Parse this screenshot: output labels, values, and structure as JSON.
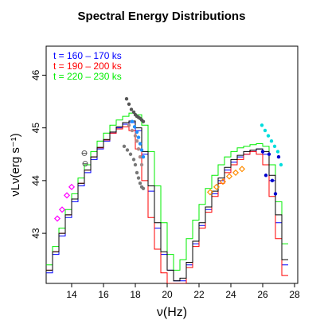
{
  "chart_data": {
    "type": "line",
    "title": "Spectral Energy Distributions",
    "xlabel": "ν(Hz)",
    "ylabel": "νLν(erg s⁻¹)",
    "xlim": [
      12.4,
      28.2
    ],
    "ylim": [
      42.05,
      46.55
    ],
    "x_ticks": [
      14,
      16,
      18,
      20,
      22,
      24,
      26,
      28
    ],
    "y_ticks": [
      43,
      44,
      45,
      46
    ],
    "grid": false,
    "legend_placement": "top-left",
    "legend": [
      {
        "label": "t = 160 – 170 ks",
        "color": "#0000ff"
      },
      {
        "label": "t = 190 – 200 ks",
        "color": "#ff0000"
      },
      {
        "label": "t = 220 – 230 ks",
        "color": "#00ee00"
      }
    ],
    "series": [
      {
        "color": "#0000ff",
        "style": "step",
        "x": [
          12.4,
          12.8,
          13.2,
          13.6,
          14.0,
          14.4,
          14.8,
          15.2,
          15.6,
          16.0,
          16.4,
          16.8,
          17.2,
          17.6,
          18.0,
          18.4,
          18.8,
          19.2,
          19.6,
          20.0,
          20.4,
          20.8,
          21.2,
          21.6,
          22.0,
          22.4,
          22.8,
          23.2,
          23.6,
          24.0,
          24.4,
          24.8,
          25.2,
          25.6,
          26.0,
          26.4,
          26.8,
          27.2
        ],
        "y": [
          42.25,
          42.6,
          42.95,
          43.3,
          43.6,
          43.9,
          44.15,
          44.4,
          44.6,
          44.75,
          44.9,
          45.0,
          45.07,
          45.1,
          44.95,
          44.5,
          43.8,
          43.1,
          42.6,
          42.3,
          42.1,
          42.1,
          42.4,
          42.8,
          43.15,
          43.45,
          43.75,
          44.0,
          44.2,
          44.35,
          44.45,
          44.5,
          44.55,
          44.6,
          44.5,
          44.0,
          43.2,
          42.4
        ]
      },
      {
        "color": "#ff0000",
        "style": "step",
        "x": [
          12.4,
          12.8,
          13.2,
          13.6,
          14.0,
          14.4,
          14.8,
          15.2,
          15.6,
          16.0,
          16.4,
          16.8,
          17.2,
          17.6,
          18.0,
          18.4,
          18.8,
          19.2,
          19.6,
          20.0,
          20.4,
          20.8,
          21.2,
          21.6,
          22.0,
          22.4,
          22.8,
          23.2,
          23.6,
          24.0,
          24.4,
          24.8,
          25.2,
          25.6,
          26.0,
          26.4,
          26.8,
          27.2
        ],
        "y": [
          42.3,
          42.65,
          43.0,
          43.35,
          43.65,
          43.95,
          44.2,
          44.45,
          44.62,
          44.77,
          44.9,
          44.98,
          45.02,
          44.95,
          44.6,
          44.0,
          43.3,
          42.7,
          42.25,
          42.05,
          42.05,
          42.05,
          42.35,
          42.75,
          43.1,
          43.4,
          43.7,
          43.95,
          44.15,
          44.3,
          44.4,
          44.5,
          44.55,
          44.5,
          44.3,
          43.7,
          42.9,
          42.2
        ]
      },
      {
        "color": "#00ee00",
        "style": "step",
        "x": [
          12.4,
          12.8,
          13.2,
          13.6,
          14.0,
          14.4,
          14.8,
          15.2,
          15.6,
          16.0,
          16.4,
          16.8,
          17.2,
          17.6,
          18.0,
          18.4,
          18.8,
          19.2,
          19.6,
          20.0,
          20.4,
          20.8,
          21.2,
          21.6,
          22.0,
          22.4,
          22.8,
          23.2,
          23.6,
          24.0,
          24.4,
          24.8,
          25.2,
          25.6,
          26.0,
          26.4,
          26.8,
          27.2
        ],
        "y": [
          42.4,
          42.75,
          43.1,
          43.45,
          43.75,
          44.05,
          44.3,
          44.55,
          44.75,
          44.9,
          45.05,
          45.15,
          45.22,
          45.28,
          45.25,
          45.05,
          44.55,
          43.9,
          43.2,
          42.6,
          42.3,
          42.5,
          42.9,
          43.25,
          43.55,
          43.85,
          44.1,
          44.3,
          44.45,
          44.55,
          44.62,
          44.65,
          44.68,
          44.7,
          44.65,
          44.3,
          43.6,
          42.8
        ]
      },
      {
        "color": "#000000",
        "style": "step",
        "x": [
          12.4,
          12.8,
          13.2,
          13.6,
          14.0,
          14.4,
          14.8,
          15.2,
          15.6,
          16.0,
          16.4,
          16.8,
          17.2,
          17.6,
          18.0,
          18.4,
          18.8,
          19.2,
          19.6,
          20.0,
          20.4,
          20.8,
          21.2,
          21.6,
          22.0,
          22.4,
          22.8,
          23.2,
          23.6,
          24.0,
          24.4,
          24.8,
          25.2,
          25.6,
          26.0,
          26.4,
          26.8,
          27.2
        ],
        "y": [
          42.3,
          42.65,
          43.0,
          43.35,
          43.65,
          43.95,
          44.2,
          44.45,
          44.63,
          44.78,
          44.92,
          45.02,
          45.1,
          45.13,
          45.0,
          44.55,
          43.9,
          43.2,
          42.65,
          42.3,
          42.1,
          42.15,
          42.45,
          42.85,
          43.2,
          43.5,
          43.8,
          44.05,
          44.25,
          44.4,
          44.48,
          44.55,
          44.58,
          44.6,
          44.55,
          44.1,
          43.35,
          42.5
        ]
      }
    ],
    "points": [
      {
        "marker": "diamond",
        "color": "#ff00ff",
        "x": [
          13.1,
          13.4,
          13.7,
          14.0
        ],
        "y": [
          43.28,
          43.45,
          43.72,
          43.88
        ]
      },
      {
        "marker": "circle-cross",
        "color": "#555555",
        "x": [
          14.8,
          14.85
        ],
        "y": [
          44.52,
          44.32
        ]
      },
      {
        "marker": "diamond",
        "color": "#ff8c00",
        "x": [
          22.7,
          23.1,
          23.5,
          23.9,
          24.3,
          24.7
        ],
        "y": [
          43.78,
          43.88,
          43.98,
          44.08,
          44.15,
          44.22
        ]
      },
      {
        "marker": "dot",
        "color": "#00dddd",
        "x": [
          25.95,
          26.15,
          26.35,
          26.55,
          26.75,
          26.95,
          27.15
        ],
        "y": [
          45.05,
          44.95,
          44.85,
          44.75,
          44.65,
          44.55,
          44.3
        ]
      },
      {
        "marker": "dot",
        "color": "#0000cc",
        "x": [
          26.0,
          26.2,
          26.4,
          26.6,
          26.8,
          27.0
        ],
        "y": [
          44.55,
          44.1,
          44.5,
          44.0,
          43.75,
          44.45
        ]
      },
      {
        "marker": "dot",
        "color": "#555555",
        "x": [
          17.45,
          17.6,
          17.75,
          17.9,
          18.0,
          18.1,
          18.2,
          18.3,
          18.4,
          18.5
        ],
        "y": [
          45.55,
          45.45,
          45.35,
          45.3,
          45.25,
          45.22,
          45.2,
          45.18,
          45.15,
          45.12
        ]
      },
      {
        "marker": "dot",
        "color": "#777777",
        "x": [
          17.3,
          17.5,
          17.7,
          17.9,
          18.0,
          18.1,
          18.2,
          18.3,
          18.4,
          18.5
        ],
        "y": [
          44.65,
          44.58,
          44.5,
          44.4,
          44.3,
          44.15,
          44.05,
          43.95,
          43.88,
          43.85
        ]
      },
      {
        "marker": "dot",
        "color": "#aa8888",
        "x": [
          17.6,
          17.8,
          18.0,
          18.1,
          18.2,
          18.3,
          18.4
        ],
        "y": [
          45.05,
          44.95,
          44.85,
          44.75,
          44.6,
          44.45,
          44.3
        ]
      },
      {
        "marker": "dot",
        "color": "#1e90ff",
        "x": [
          17.8,
          17.95,
          18.1,
          18.2,
          18.3,
          18.4,
          18.5
        ],
        "y": [
          45.12,
          45.02,
          44.92,
          44.82,
          44.7,
          44.58,
          44.45
        ]
      }
    ]
  }
}
